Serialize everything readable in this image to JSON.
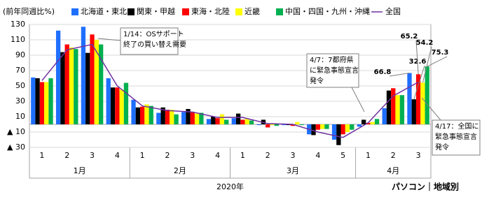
{
  "chart_data": {
    "type": "bar",
    "y_label": "(前年同週比%)",
    "footer": "パソコン｜地域別",
    "x_label": "2020年",
    "categories": [
      "1",
      "2",
      "3",
      "4",
      "1",
      "2",
      "3",
      "4",
      "1",
      "2",
      "3",
      "4",
      "5",
      "1",
      "2",
      "3"
    ],
    "category_groups": [
      {
        "label": "1月",
        "count": 4
      },
      {
        "label": "2月",
        "count": 4
      },
      {
        "label": "3月",
        "count": 5
      },
      {
        "label": "4月",
        "count": 3
      }
    ],
    "ylim": [
      -30,
      130
    ],
    "yticks": [
      {
        "value": -30,
        "label": "▲ 30"
      },
      {
        "value": -10,
        "label": "▲ 10"
      },
      10,
      30,
      50,
      70,
      90,
      110,
      130
    ],
    "grid": true,
    "series": [
      {
        "name": "北海道・東北",
        "color": "#1f6fff",
        "type": "bar",
        "values": [
          61,
          122,
          127,
          60,
          32,
          15,
          16,
          7,
          8,
          -1,
          -1,
          -13,
          -20,
          -3,
          21,
          66.8
        ]
      },
      {
        "name": "関東・甲越",
        "color": "#000000",
        "type": "bar",
        "values": [
          60,
          94,
          93,
          48,
          22,
          22,
          20,
          10,
          14,
          6,
          -1,
          -14,
          -27,
          6,
          44,
          32.6
        ]
      },
      {
        "name": "東海・北陸",
        "color": "#ff0000",
        "type": "bar",
        "values": [
          55,
          104,
          117,
          48,
          23,
          19,
          16,
          8,
          6,
          -4,
          -2,
          -7,
          -13,
          2,
          47,
          65.2
        ]
      },
      {
        "name": "近畿",
        "color": "#ffff00",
        "type": "bar",
        "values": [
          55,
          100,
          110,
          45,
          26,
          19,
          14,
          13,
          7,
          -1,
          3,
          -6,
          -10,
          3,
          38,
          54.2
        ]
      },
      {
        "name": "中国・四国・九州・沖縄",
        "color": "#00b050",
        "type": "bar",
        "values": [
          60,
          98,
          104,
          54,
          24,
          13,
          15,
          6,
          5,
          -2,
          -1,
          -6,
          -7,
          7,
          38,
          75.3
        ]
      },
      {
        "name": "全国",
        "color": "#7030a0",
        "type": "line",
        "values": [
          57,
          97,
          104,
          50,
          24,
          18,
          16,
          9,
          9,
          1,
          0,
          -10,
          -17,
          2,
          37,
          55
        ]
      }
    ],
    "annotations": [
      {
        "lines": [
          "1/14：OSサポート",
          "終了の買い替え需要"
        ]
      },
      {
        "lines": [
          "4/7：7都府県",
          "に緊急事態宣言",
          "発令"
        ]
      },
      {
        "lines": [
          "4/17：全国に",
          "緊急事態宣言",
          "発令"
        ]
      }
    ]
  }
}
